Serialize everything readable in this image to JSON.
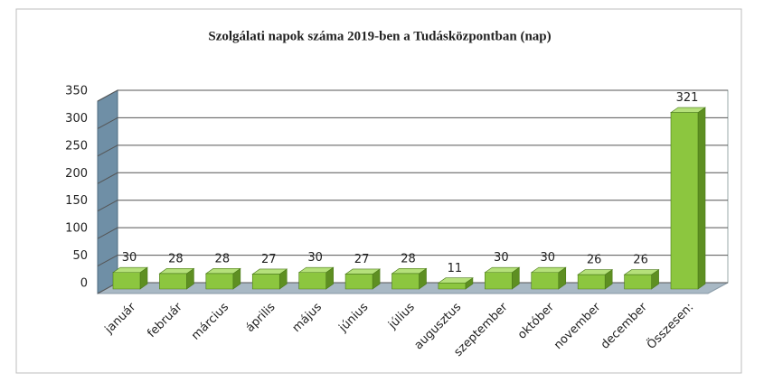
{
  "chart_data": {
    "type": "bar3d",
    "title": "Szolgálati napok száma 2019-ben a Tudásközpontban (nap)",
    "categories": [
      "január",
      "február",
      "március",
      "április",
      "május",
      "június",
      "július",
      "augusztus",
      "szeptember",
      "október",
      "november",
      "december",
      "Összesen:"
    ],
    "values": [
      30,
      28,
      28,
      27,
      30,
      27,
      28,
      11,
      30,
      30,
      26,
      26,
      321
    ],
    "color": "#8cc63f",
    "ylim": [
      0,
      350
    ],
    "yticks": [
      0,
      50,
      100,
      150,
      200,
      250,
      300,
      350
    ],
    "grid": true
  }
}
